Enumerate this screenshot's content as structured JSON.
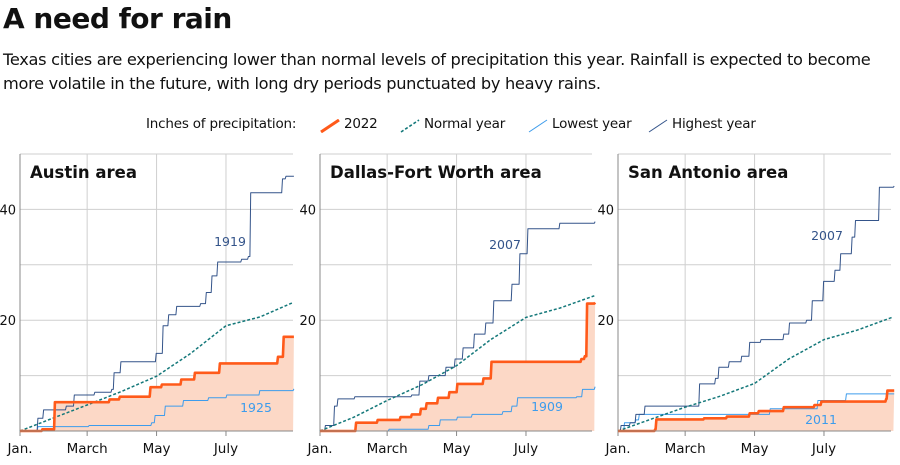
{
  "header": {
    "title": "A need for rain",
    "subtitle": "Texas cities are experiencing lower than normal levels of precipitation this year. Rainfall is expected to become more volatile in the future, with long dry periods punctuated by heavy rains."
  },
  "legend": {
    "label": "Inches of precipitation:",
    "items": [
      {
        "label": "2022",
        "color": "#ff5a1a",
        "style": "solid-thick"
      },
      {
        "label": "Normal year",
        "color": "#14787a",
        "style": "dashed"
      },
      {
        "label": "Lowest year",
        "color": "#3d9cec",
        "style": "solid-thin"
      },
      {
        "label": "Highest year",
        "color": "#34548a",
        "style": "solid-thin"
      }
    ]
  },
  "colors": {
    "fill_2022": "#fcd8c6",
    "grid": "#cfcfcf",
    "axis": "#888888"
  },
  "chart_data": [
    {
      "type": "line",
      "title": "Austin area",
      "x_ticks": [
        "Jan.",
        "March",
        "May",
        "July"
      ],
      "y_ticks": [
        "20",
        "40"
      ],
      "ylim": [
        0,
        50
      ],
      "grid": true,
      "series": [
        {
          "name": "2022",
          "step": true,
          "fill": true,
          "points": [
            [
              "01-01",
              0
            ],
            [
              "01-20",
              0.3
            ],
            [
              "01-31",
              5.2
            ],
            [
              "03-20",
              5.7
            ],
            [
              "03-29",
              6.2
            ],
            [
              "04-25",
              7.9
            ],
            [
              "05-05",
              8.4
            ],
            [
              "05-22",
              9.3
            ],
            [
              "06-03",
              10.5
            ],
            [
              "06-25",
              12.2
            ],
            [
              "08-15",
              13.4
            ],
            [
              "08-20",
              17
            ],
            [
              "08-29",
              17
            ]
          ]
        },
        {
          "name": "Normal year",
          "step": false,
          "points": [
            [
              "01-01",
              0
            ],
            [
              "01-31",
              2.4
            ],
            [
              "03-01",
              4.7
            ],
            [
              "04-01",
              7.2
            ],
            [
              "05-01",
              9.9
            ],
            [
              "05-31",
              14
            ],
            [
              "07-01",
              19
            ],
            [
              "07-31",
              20.6
            ],
            [
              "08-29",
              23.2
            ]
          ]
        },
        {
          "name": "Lowest year",
          "label": "1925",
          "step": true,
          "points": [
            [
              "01-01",
              0
            ],
            [
              "01-16",
              0.8
            ],
            [
              "03-02",
              1
            ],
            [
              "04-26",
              1.5
            ],
            [
              "04-29",
              2.8
            ],
            [
              "05-08",
              4.5
            ],
            [
              "05-24",
              5.5
            ],
            [
              "06-15",
              6
            ],
            [
              "07-01",
              6.5
            ],
            [
              "07-30",
              7.3
            ],
            [
              "08-29",
              7.6
            ]
          ]
        },
        {
          "name": "Highest year",
          "label": "1919",
          "step": true,
          "points": [
            [
              "01-01",
              0
            ],
            [
              "01-16",
              2.3
            ],
            [
              "01-21",
              3.8
            ],
            [
              "02-10",
              4.5
            ],
            [
              "02-17",
              6.5
            ],
            [
              "03-07",
              7
            ],
            [
              "03-22",
              7.5
            ],
            [
              "03-24",
              10.5
            ],
            [
              "03-30",
              12.5
            ],
            [
              "04-30",
              14
            ],
            [
              "05-06",
              19
            ],
            [
              "05-11",
              21
            ],
            [
              "05-18",
              22.5
            ],
            [
              "06-08",
              23
            ],
            [
              "06-13",
              25
            ],
            [
              "06-18",
              28
            ],
            [
              "06-23",
              30.5
            ],
            [
              "07-14",
              31
            ],
            [
              "07-20",
              31.5
            ],
            [
              "07-22",
              43
            ],
            [
              "08-17",
              43
            ],
            [
              "08-19",
              45.5
            ],
            [
              "08-22",
              46
            ],
            [
              "08-29",
              46
            ]
          ]
        }
      ]
    },
    {
      "type": "line",
      "title": "Dallas-Fort Worth area",
      "x_ticks": [
        "Jan.",
        "March",
        "May",
        "July"
      ],
      "y_ticks": [
        "20",
        "40"
      ],
      "ylim": [
        0,
        50
      ],
      "grid": true,
      "series": [
        {
          "name": "2022",
          "step": true,
          "fill": true,
          "points": [
            [
              "01-01",
              0
            ],
            [
              "02-01",
              1.5
            ],
            [
              "02-20",
              2
            ],
            [
              "03-12",
              2.5
            ],
            [
              "03-22",
              3
            ],
            [
              "03-30",
              4
            ],
            [
              "04-04",
              5
            ],
            [
              "04-14",
              6
            ],
            [
              "04-24",
              7
            ],
            [
              "05-01",
              8.5
            ],
            [
              "05-24",
              9.5
            ],
            [
              "05-31",
              12.5
            ],
            [
              "08-18",
              13
            ],
            [
              "08-21",
              13.5
            ],
            [
              "08-23",
              23
            ],
            [
              "08-30",
              23.2
            ]
          ]
        },
        {
          "name": "Normal year",
          "step": false,
          "points": [
            [
              "01-01",
              0
            ],
            [
              "01-31",
              2.5
            ],
            [
              "03-01",
              5.5
            ],
            [
              "04-01",
              8.4
            ],
            [
              "05-01",
              11.8
            ],
            [
              "05-31",
              16.5
            ],
            [
              "07-01",
              20.5
            ],
            [
              "07-31",
              22.2
            ],
            [
              "08-30",
              24.4
            ]
          ]
        },
        {
          "name": "Lowest year",
          "label": "1909",
          "step": true,
          "points": [
            [
              "01-01",
              0
            ],
            [
              "03-02",
              0.3
            ],
            [
              "04-06",
              1
            ],
            [
              "04-16",
              2
            ],
            [
              "05-01",
              2.5
            ],
            [
              "05-14",
              3
            ],
            [
              "06-10",
              3.5
            ],
            [
              "06-18",
              4.5
            ],
            [
              "06-23",
              6
            ],
            [
              "08-14",
              6.2
            ],
            [
              "08-19",
              7.5
            ],
            [
              "08-30",
              8
            ]
          ]
        },
        {
          "name": "Highest year",
          "label": "2007",
          "step": true,
          "points": [
            [
              "01-01",
              0
            ],
            [
              "01-05",
              1
            ],
            [
              "01-13",
              4.5
            ],
            [
              "01-16",
              5.8
            ],
            [
              "01-31",
              6.2
            ],
            [
              "03-22",
              6.5
            ],
            [
              "03-29",
              9
            ],
            [
              "04-06",
              10
            ],
            [
              "04-21",
              11.5
            ],
            [
              "04-29",
              13
            ],
            [
              "05-06",
              15
            ],
            [
              "05-16",
              17.5
            ],
            [
              "05-26",
              19.5
            ],
            [
              "06-02",
              23.5
            ],
            [
              "06-18",
              26.5
            ],
            [
              "06-25",
              32
            ],
            [
              "07-02",
              36.5
            ],
            [
              "07-30",
              37.5
            ],
            [
              "08-30",
              37.8
            ]
          ]
        }
      ]
    },
    {
      "type": "line",
      "title": "San Antonio area",
      "x_ticks": [
        "Jan.",
        "March",
        "May",
        "July"
      ],
      "y_ticks": [
        "20",
        "40"
      ],
      "ylim": [
        0,
        50
      ],
      "grid": true,
      "series": [
        {
          "name": "2022",
          "step": true,
          "fill": true,
          "points": [
            [
              "01-01",
              0
            ],
            [
              "02-02",
              0.3
            ],
            [
              "02-03",
              2.1
            ],
            [
              "03-17",
              2.3
            ],
            [
              "04-06",
              2.6
            ],
            [
              "04-26",
              3.2
            ],
            [
              "05-04",
              3.6
            ],
            [
              "05-26",
              4.3
            ],
            [
              "06-22",
              4.7
            ],
            [
              "06-28",
              5.3
            ],
            [
              "08-24",
              5.8
            ],
            [
              "08-25",
              7.3
            ],
            [
              "08-31",
              7.3
            ]
          ]
        },
        {
          "name": "Normal year",
          "step": false,
          "points": [
            [
              "01-01",
              0
            ],
            [
              "01-31",
              2.2
            ],
            [
              "03-01",
              4.3
            ],
            [
              "04-01",
              6.3
            ],
            [
              "05-01",
              8.6
            ],
            [
              "05-31",
              13
            ],
            [
              "07-01",
              16.5
            ],
            [
              "07-30",
              18.2
            ],
            [
              "08-31",
              20.6
            ]
          ]
        },
        {
          "name": "Lowest year",
          "label": "2011",
          "step": true,
          "points": [
            [
              "01-01",
              0
            ],
            [
              "01-06",
              1.5
            ],
            [
              "01-16",
              2
            ],
            [
              "01-19",
              3
            ],
            [
              "05-11",
              3
            ],
            [
              "05-14",
              4
            ],
            [
              "06-22",
              4
            ],
            [
              "06-25",
              5.5
            ],
            [
              "07-20",
              6.7
            ],
            [
              "08-31",
              6.7
            ]
          ]
        },
        {
          "name": "Highest year",
          "label": "2007",
          "step": true,
          "points": [
            [
              "01-01",
              0
            ],
            [
              "01-03",
              1
            ],
            [
              "01-11",
              1.5
            ],
            [
              "01-16",
              3
            ],
            [
              "01-24",
              4.5
            ],
            [
              "03-10",
              4.5
            ],
            [
              "03-13",
              8.5
            ],
            [
              "03-27",
              9.5
            ],
            [
              "03-30",
              11.5
            ],
            [
              "04-08",
              12.5
            ],
            [
              "04-19",
              13.5
            ],
            [
              "04-26",
              16
            ],
            [
              "05-06",
              16.5
            ],
            [
              "05-26",
              17.5
            ],
            [
              "05-31",
              19.5
            ],
            [
              "06-15",
              20
            ],
            [
              "06-20",
              23.5
            ],
            [
              "06-30",
              27
            ],
            [
              "07-10",
              29
            ],
            [
              "07-15",
              32
            ],
            [
              "07-25",
              35
            ],
            [
              "07-28",
              38
            ],
            [
              "08-17",
              38
            ],
            [
              "08-18",
              44
            ],
            [
              "08-31",
              44.2
            ]
          ]
        }
      ]
    }
  ]
}
